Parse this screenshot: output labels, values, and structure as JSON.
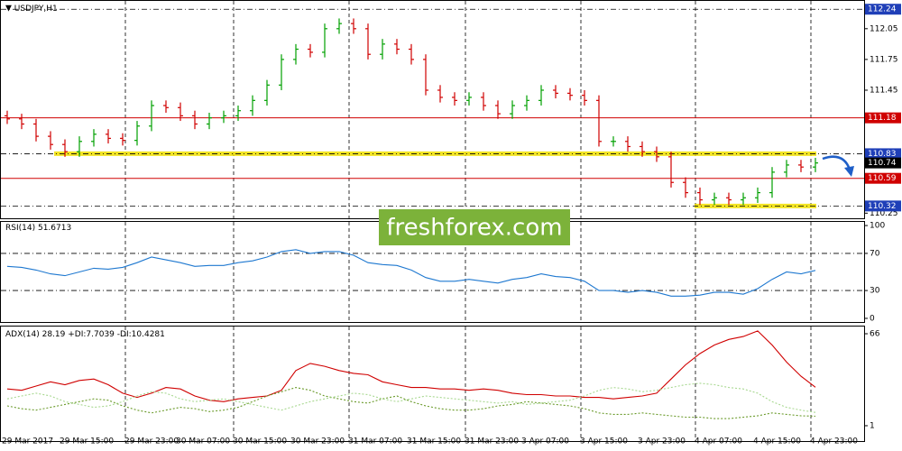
{
  "chart_data": {
    "type": "ohlc",
    "title": "USDJPY,H1",
    "watermark": "freshforex.com",
    "x_labels": [
      "29 Mar 2017",
      "29 Mar 15:00",
      "29 Mar 23:00",
      "30 Mar 07:00",
      "30 Mar 15:00",
      "30 Mar 23:00",
      "31 Mar 07:00",
      "31 Mar 15:00",
      "31 Mar 23:00",
      "3 Apr 07:00",
      "3 Apr 15:00",
      "3 Apr 23:00",
      "4 Apr 07:00",
      "4 Apr 15:00",
      "4 Apr 23:00"
    ],
    "ylim": [
      110.2,
      112.33
    ],
    "yticks": [
      112.05,
      111.75,
      111.45,
      110.25
    ],
    "levels": [
      {
        "value": 112.24,
        "color": "#1f3fb8",
        "style": "none"
      },
      {
        "value": 111.18,
        "color": "#d00000",
        "style": "solid"
      },
      {
        "value": 110.83,
        "color": "#1f3fb8",
        "style": "yellow-dash"
      },
      {
        "value": 110.74,
        "color": "#000000",
        "style": "none"
      },
      {
        "value": 110.59,
        "color": "#d00000",
        "style": "solid"
      },
      {
        "value": 110.32,
        "color": "#1f3fb8",
        "style": "yellow"
      }
    ],
    "up_color": "#00a000",
    "down_color": "#d00000",
    "open": [
      111.2,
      111.17,
      111.12,
      111.0,
      110.92,
      110.85,
      110.95,
      111.02,
      110.98,
      110.96,
      111.1,
      111.3,
      111.28,
      111.2,
      111.12,
      111.18,
      111.2,
      111.25,
      111.35,
      111.5,
      111.75,
      111.85,
      111.82,
      112.05,
      112.1,
      112.05,
      111.8,
      111.9,
      111.85,
      111.75,
      111.45,
      111.38,
      111.35,
      111.38,
      111.3,
      111.22,
      111.3,
      111.35,
      111.45,
      111.42,
      111.4,
      111.35,
      110.95,
      110.95,
      110.9,
      110.85,
      110.8,
      110.55,
      110.45,
      110.38,
      110.4,
      110.38,
      110.4,
      110.45,
      110.65,
      110.72,
      110.7
    ],
    "high": [
      111.25,
      111.22,
      111.17,
      111.05,
      110.97,
      111.0,
      111.07,
      111.07,
      111.03,
      111.15,
      111.35,
      111.35,
      111.33,
      111.25,
      111.23,
      111.25,
      111.3,
      111.4,
      111.55,
      111.8,
      111.9,
      111.9,
      112.1,
      112.15,
      112.15,
      112.1,
      111.95,
      111.95,
      111.9,
      111.8,
      111.5,
      111.43,
      111.43,
      111.43,
      111.35,
      111.35,
      111.4,
      111.5,
      111.5,
      111.47,
      111.45,
      111.4,
      111.0,
      111.0,
      110.95,
      110.9,
      110.85,
      110.6,
      110.5,
      110.45,
      110.45,
      110.45,
      110.5,
      110.7,
      110.77,
      110.77,
      110.79
    ],
    "low": [
      111.12,
      111.07,
      110.95,
      110.87,
      110.8,
      110.8,
      110.9,
      110.93,
      110.91,
      110.91,
      111.05,
      111.23,
      111.15,
      111.07,
      111.07,
      111.13,
      111.15,
      111.2,
      111.3,
      111.45,
      111.7,
      111.77,
      111.77,
      112.0,
      112.0,
      111.75,
      111.75,
      111.8,
      111.7,
      111.4,
      111.33,
      111.3,
      111.3,
      111.25,
      111.17,
      111.17,
      111.25,
      111.3,
      111.37,
      111.35,
      111.3,
      110.9,
      110.9,
      110.85,
      110.8,
      110.75,
      110.5,
      110.4,
      110.33,
      110.33,
      110.33,
      110.33,
      110.35,
      110.4,
      110.6,
      110.65,
      110.65
    ],
    "close": [
      111.17,
      111.12,
      111.0,
      110.92,
      110.85,
      110.95,
      111.02,
      110.98,
      110.96,
      111.1,
      111.3,
      111.28,
      111.2,
      111.12,
      111.18,
      111.2,
      111.25,
      111.35,
      111.5,
      111.75,
      111.85,
      111.82,
      112.05,
      112.1,
      112.05,
      111.8,
      111.9,
      111.85,
      111.75,
      111.45,
      111.38,
      111.35,
      111.38,
      111.3,
      111.22,
      111.3,
      111.35,
      111.45,
      111.42,
      111.4,
      111.35,
      110.95,
      110.95,
      110.9,
      110.85,
      110.8,
      110.55,
      110.45,
      110.38,
      110.4,
      110.38,
      110.4,
      110.45,
      110.65,
      110.72,
      110.7,
      110.74
    ],
    "rsi": {
      "label": "RSI(14)",
      "color": "#1e78d0",
      "ylim": [
        -4.9,
        104.9
      ],
      "yticks": [
        100,
        70,
        30,
        0
      ],
      "values": [
        56,
        55,
        52,
        48,
        46,
        50,
        54,
        53,
        55,
        60,
        66,
        63,
        60,
        56,
        57,
        57,
        60,
        62,
        66,
        72,
        74,
        70,
        72,
        72,
        68,
        60,
        58,
        57,
        52,
        44,
        40,
        40,
        42,
        40,
        38,
        42,
        44,
        48,
        45,
        44,
        40,
        30,
        30,
        28,
        30,
        28,
        24,
        24,
        25,
        28,
        28,
        26,
        32,
        42,
        50,
        48,
        51.6713
      ]
    },
    "adx": {
      "ylim": [
        -10.5,
        71.1
      ],
      "yticks": [
        66,
        1
      ],
      "series": [
        {
          "name": "ADX(14)",
          "color": "#d00000",
          "values": [
            27,
            26,
            29,
            32,
            30,
            33,
            34,
            30,
            24,
            21,
            24,
            28,
            27,
            22,
            19,
            18,
            20,
            21,
            22,
            26,
            40,
            45,
            43,
            40,
            38,
            37,
            32,
            30,
            28,
            28,
            27,
            27,
            26,
            27,
            26,
            24,
            23,
            23,
            22,
            22,
            21,
            21,
            20,
            21,
            22,
            24,
            34,
            44,
            52,
            58,
            62,
            64,
            68,
            58,
            46,
            36,
            28.19
          ]
        },
        {
          "name": "+DI:",
          "color": "#6a9a2a",
          "values": [
            15,
            13,
            12,
            14,
            16,
            18,
            20,
            19,
            15,
            12,
            10,
            12,
            14,
            13,
            11,
            12,
            14,
            18,
            22,
            25,
            28,
            26,
            22,
            20,
            18,
            17,
            20,
            22,
            18,
            15,
            13,
            12,
            12,
            13,
            15,
            16,
            18,
            17,
            16,
            15,
            13,
            10,
            9,
            9,
            10,
            9,
            8,
            7,
            7,
            6,
            6,
            7,
            8,
            10,
            9,
            8,
            7.7039
          ]
        },
        {
          "name": "-DI:",
          "color": "#a8d890",
          "values": [
            20,
            22,
            24,
            22,
            18,
            16,
            14,
            15,
            18,
            22,
            25,
            24,
            20,
            18,
            19,
            20,
            18,
            16,
            14,
            12,
            15,
            18,
            20,
            22,
            24,
            23,
            20,
            18,
            20,
            22,
            21,
            20,
            19,
            18,
            17,
            18,
            16,
            17,
            18,
            19,
            22,
            26,
            28,
            27,
            25,
            26,
            28,
            30,
            31,
            30,
            28,
            27,
            24,
            18,
            14,
            12,
            10.4281
          ]
        }
      ]
    }
  }
}
